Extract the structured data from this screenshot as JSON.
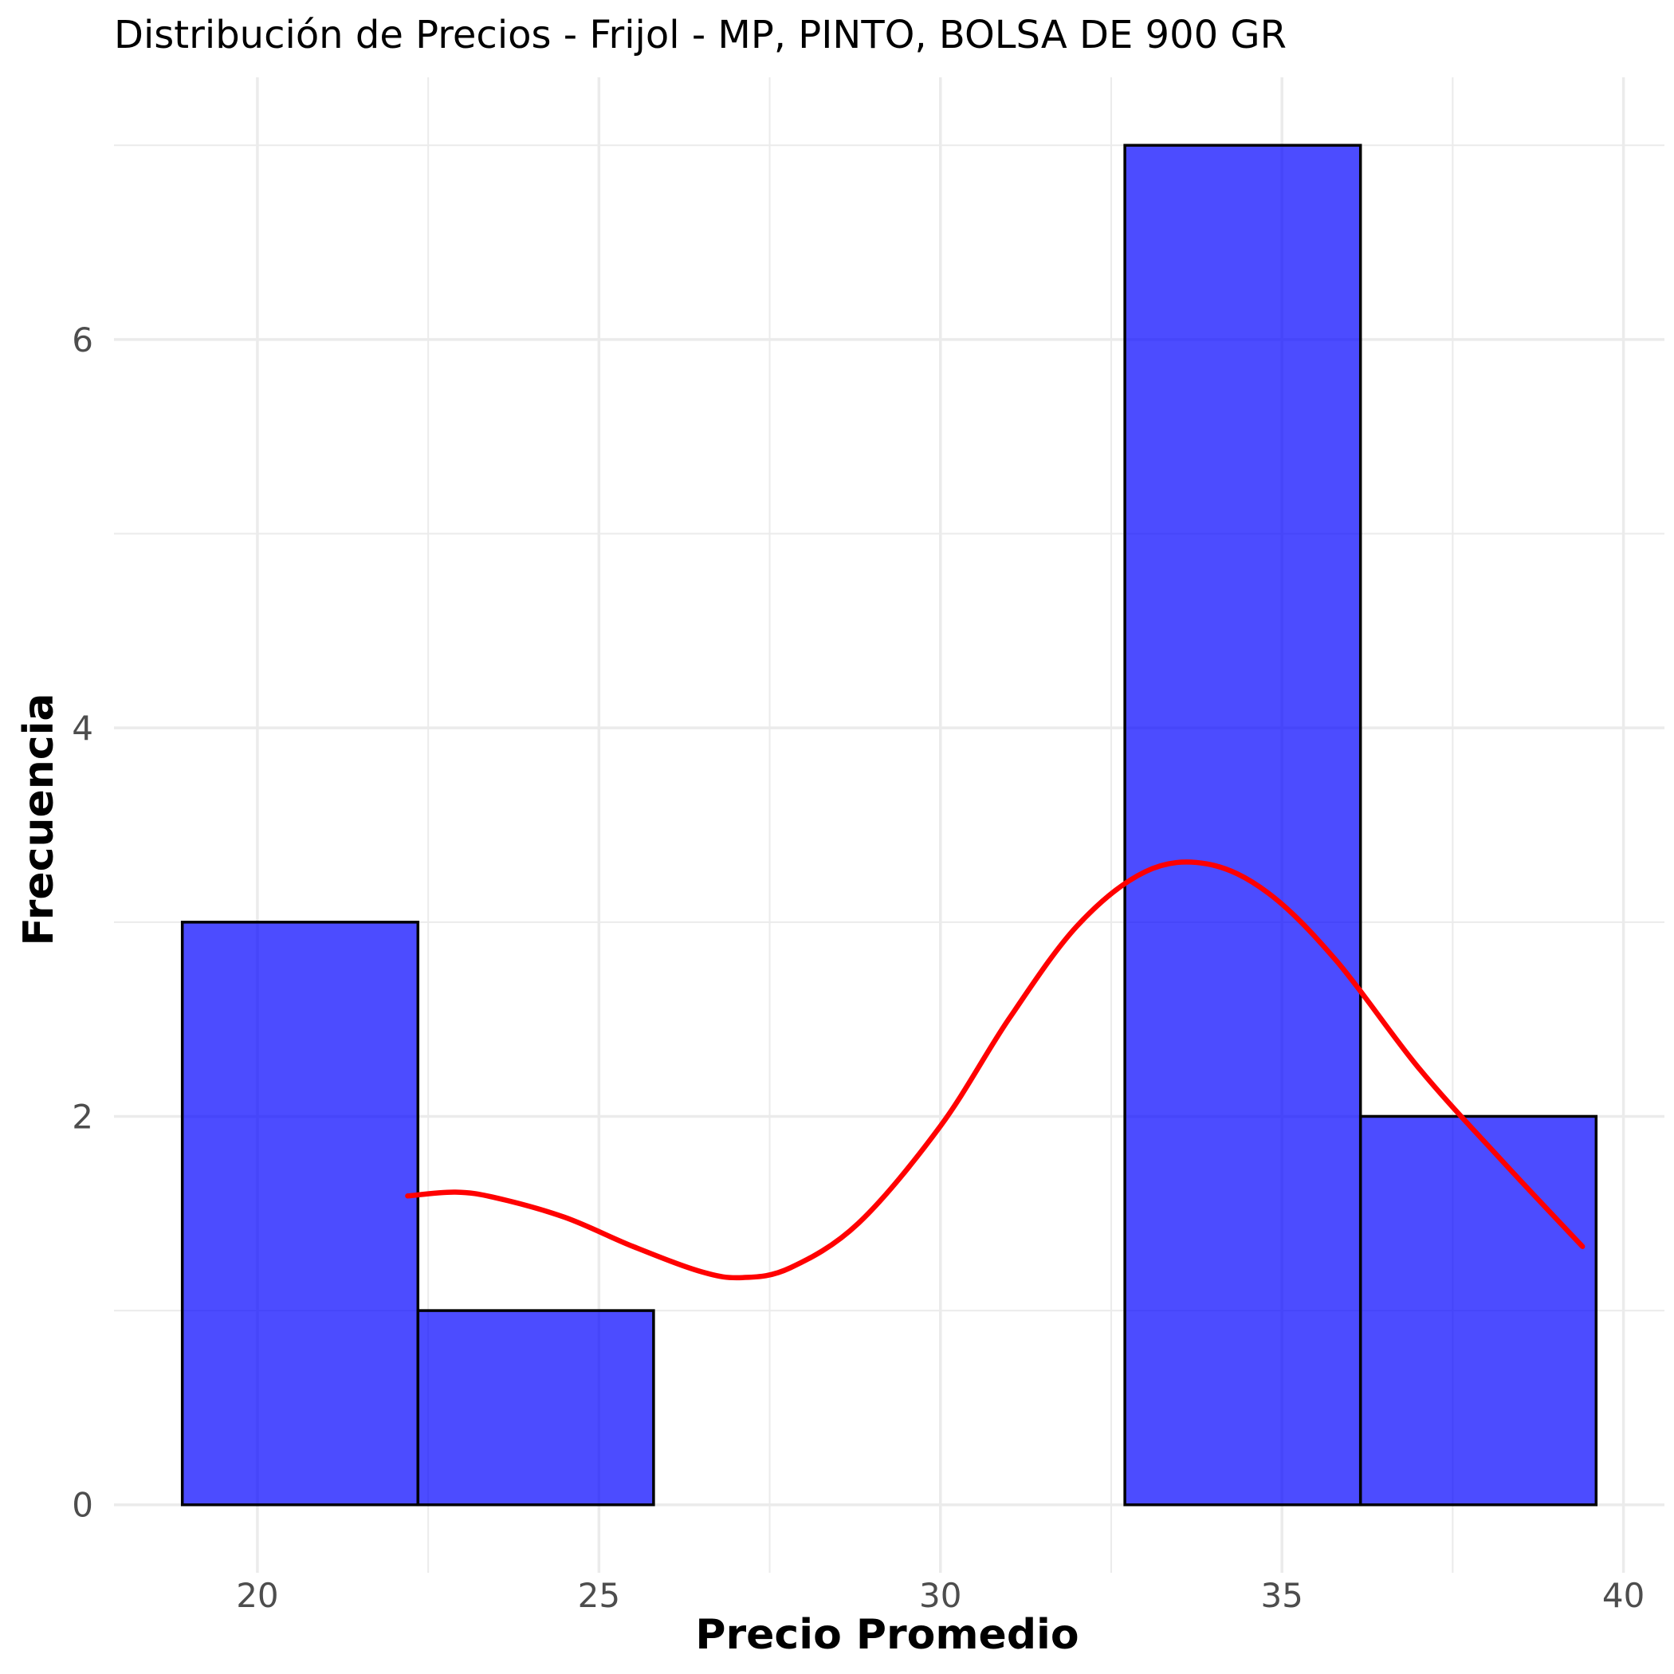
{
  "chart_data": {
    "type": "histogram",
    "title": "Distribución de Precios - Frijol - MP, PINTO, BOLSA DE 900 GR",
    "xlabel": "Precio Promedio",
    "ylabel": "Frecuencia",
    "xlim": [
      17.9,
      40.6
    ],
    "ylim": [
      -0.35,
      7.35
    ],
    "x_ticks": [
      20,
      25,
      30,
      35,
      40
    ],
    "y_ticks": [
      0,
      2,
      4,
      6
    ],
    "grid": true,
    "bins": [
      {
        "x0": 18.9,
        "x1": 22.35,
        "count": 3
      },
      {
        "x0": 22.35,
        "x1": 25.8,
        "count": 1
      },
      {
        "x0": 25.8,
        "x1": 29.25,
        "count": 0
      },
      {
        "x0": 29.25,
        "x1": 32.7,
        "count": 0
      },
      {
        "x0": 32.7,
        "x1": 36.15,
        "count": 7
      },
      {
        "x0": 36.15,
        "x1": 39.6,
        "count": 2
      }
    ],
    "bar_color": "#0000ff",
    "bar_outline": "#000000",
    "density_curve": {
      "color": "#ff0000",
      "x": [
        22.2,
        22.9,
        23.5,
        24.5,
        25.5,
        26.5,
        27.1,
        27.8,
        28.8,
        30.0,
        31.0,
        32.0,
        33.0,
        33.9,
        34.8,
        35.8,
        37.0,
        38.2,
        39.4
      ],
      "y": [
        1.59,
        1.61,
        1.58,
        1.48,
        1.33,
        1.2,
        1.17,
        1.22,
        1.45,
        1.95,
        2.5,
        2.98,
        3.26,
        3.3,
        3.15,
        2.8,
        2.25,
        1.78,
        1.33
      ]
    }
  }
}
